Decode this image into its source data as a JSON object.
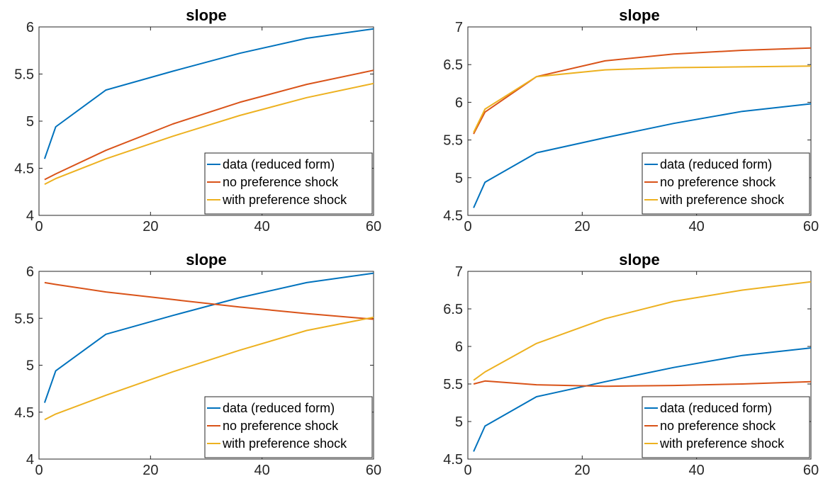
{
  "colors": {
    "blue": "#0072BD",
    "orange": "#D95319",
    "yellow": "#EDB120"
  },
  "chart_data": [
    {
      "type": "line",
      "title": "slope",
      "xlim": [
        0,
        60
      ],
      "ylim": [
        4,
        6
      ],
      "xticks": [
        0,
        20,
        40,
        60
      ],
      "yticks": [
        4,
        4.5,
        5,
        5.5,
        6
      ],
      "legend_placement": "bottom-right",
      "series": [
        {
          "name": "data (reduced form)",
          "color": "#0072BD",
          "x": [
            1,
            3,
            12,
            24,
            36,
            48,
            60
          ],
          "y": [
            4.6,
            4.94,
            5.33,
            5.53,
            5.72,
            5.88,
            5.98
          ]
        },
        {
          "name": "no preference shock",
          "color": "#D95319",
          "x": [
            1,
            3,
            12,
            24,
            36,
            48,
            60
          ],
          "y": [
            4.38,
            4.44,
            4.69,
            4.97,
            5.2,
            5.39,
            5.54
          ]
        },
        {
          "name": "with preference shock",
          "color": "#EDB120",
          "x": [
            1,
            3,
            12,
            24,
            36,
            48,
            60
          ],
          "y": [
            4.33,
            4.39,
            4.6,
            4.84,
            5.06,
            5.25,
            5.4
          ]
        }
      ]
    },
    {
      "type": "line",
      "title": "slope",
      "xlim": [
        0,
        60
      ],
      "ylim": [
        4.5,
        7
      ],
      "xticks": [
        0,
        20,
        40,
        60
      ],
      "yticks": [
        4.5,
        5,
        5.5,
        6,
        6.5,
        7
      ],
      "legend_placement": "bottom-right",
      "series": [
        {
          "name": "data (reduced form)",
          "color": "#0072BD",
          "x": [
            1,
            3,
            12,
            24,
            36,
            48,
            60
          ],
          "y": [
            4.6,
            4.94,
            5.33,
            5.53,
            5.72,
            5.88,
            5.98
          ]
        },
        {
          "name": "no preference shock",
          "color": "#D95319",
          "x": [
            1,
            3,
            12,
            24,
            36,
            48,
            60
          ],
          "y": [
            5.58,
            5.87,
            6.34,
            6.55,
            6.64,
            6.69,
            6.72
          ]
        },
        {
          "name": "with preference shock",
          "color": "#EDB120",
          "x": [
            1,
            3,
            12,
            24,
            36,
            48,
            60
          ],
          "y": [
            5.6,
            5.91,
            6.34,
            6.43,
            6.46,
            6.47,
            6.48
          ]
        }
      ]
    },
    {
      "type": "line",
      "title": "slope",
      "xlim": [
        0,
        60
      ],
      "ylim": [
        4,
        6
      ],
      "xticks": [
        0,
        20,
        40,
        60
      ],
      "yticks": [
        4,
        4.5,
        5,
        5.5,
        6
      ],
      "legend_placement": "bottom-right",
      "series": [
        {
          "name": "data (reduced form)",
          "color": "#0072BD",
          "x": [
            1,
            3,
            12,
            24,
            36,
            48,
            60
          ],
          "y": [
            4.6,
            4.94,
            5.33,
            5.53,
            5.72,
            5.88,
            5.98
          ]
        },
        {
          "name": "no preference shock",
          "color": "#D95319",
          "x": [
            1,
            3,
            12,
            24,
            36,
            48,
            60
          ],
          "y": [
            5.88,
            5.86,
            5.78,
            5.7,
            5.62,
            5.55,
            5.49
          ]
        },
        {
          "name": "with preference shock",
          "color": "#EDB120",
          "x": [
            1,
            3,
            12,
            24,
            36,
            48,
            60
          ],
          "y": [
            4.42,
            4.48,
            4.68,
            4.93,
            5.16,
            5.37,
            5.51
          ]
        }
      ]
    },
    {
      "type": "line",
      "title": "slope",
      "xlim": [
        0,
        60
      ],
      "ylim": [
        4.5,
        7
      ],
      "xticks": [
        0,
        20,
        40,
        60
      ],
      "yticks": [
        4.5,
        5,
        5.5,
        6,
        6.5,
        7
      ],
      "legend_placement": "bottom-right",
      "series": [
        {
          "name": "data (reduced form)",
          "color": "#0072BD",
          "x": [
            1,
            3,
            12,
            24,
            36,
            48,
            60
          ],
          "y": [
            4.6,
            4.94,
            5.33,
            5.53,
            5.72,
            5.88,
            5.98
          ]
        },
        {
          "name": "no preference shock",
          "color": "#D95319",
          "x": [
            1,
            3,
            12,
            24,
            36,
            48,
            60
          ],
          "y": [
            5.5,
            5.54,
            5.49,
            5.47,
            5.48,
            5.5,
            5.53
          ]
        },
        {
          "name": "with preference shock",
          "color": "#EDB120",
          "x": [
            1,
            3,
            12,
            24,
            36,
            48,
            60
          ],
          "y": [
            5.55,
            5.66,
            6.04,
            6.37,
            6.6,
            6.75,
            6.86
          ]
        }
      ]
    }
  ]
}
